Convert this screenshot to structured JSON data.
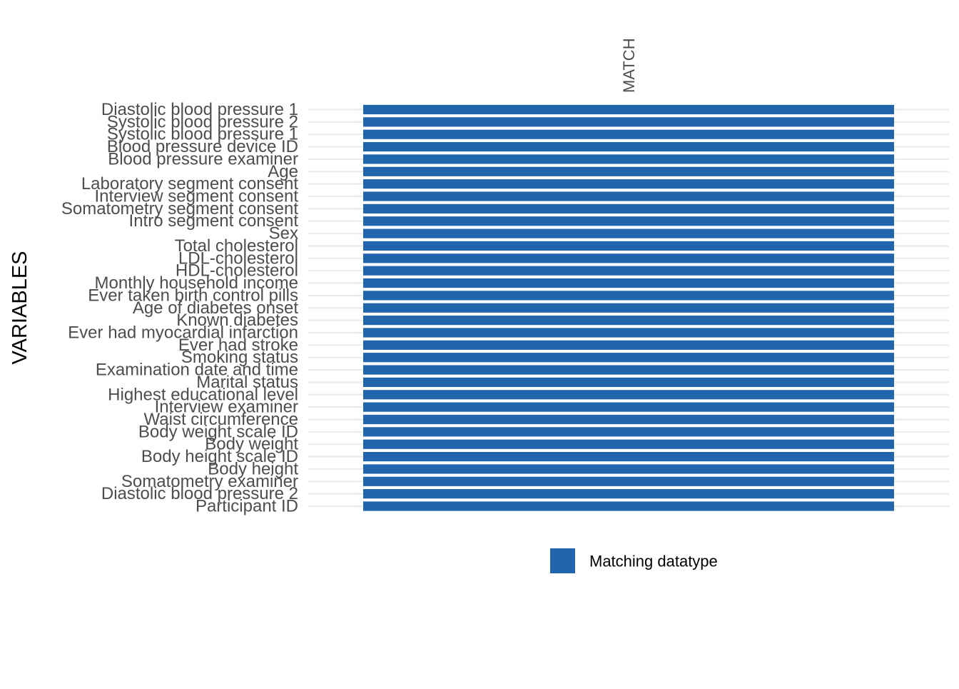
{
  "chart_data": {
    "type": "heatmap",
    "ylabel": "VARIABLES",
    "columns": [
      "MATCH"
    ],
    "variables": [
      "Diastolic blood pressure 1",
      "Systolic blood pressure 2",
      "Systolic blood pressure 1",
      "Blood pressure device ID",
      "Blood pressure examiner",
      "Age",
      "Laboratory segment consent",
      "Interview segment consent",
      "Somatometry segment consent",
      "Intro segment consent",
      "Sex",
      "Total cholesterol",
      "LDL-cholesterol",
      "HDL-cholesterol",
      "Monthly household income",
      "Ever taken birth control pills",
      "Age of diabetes onset",
      "Known diabetes",
      "Ever had myocardial infarction",
      "Ever had stroke",
      "Smoking status",
      "Examination date and time",
      "Marital status",
      "Highest educational level",
      "Interview examiner",
      "Waist circumference",
      "Body weight scale ID",
      "Body weight",
      "Body height scale ID",
      "Body height",
      "Somatometry examiner",
      "Diastolic blood pressure 2",
      "Participant ID"
    ],
    "values": [
      "Matching datatype",
      "Matching datatype",
      "Matching datatype",
      "Matching datatype",
      "Matching datatype",
      "Matching datatype",
      "Matching datatype",
      "Matching datatype",
      "Matching datatype",
      "Matching datatype",
      "Matching datatype",
      "Matching datatype",
      "Matching datatype",
      "Matching datatype",
      "Matching datatype",
      "Matching datatype",
      "Matching datatype",
      "Matching datatype",
      "Matching datatype",
      "Matching datatype",
      "Matching datatype",
      "Matching datatype",
      "Matching datatype",
      "Matching datatype",
      "Matching datatype",
      "Matching datatype",
      "Matching datatype",
      "Matching datatype",
      "Matching datatype",
      "Matching datatype",
      "Matching datatype",
      "Matching datatype",
      "Matching datatype"
    ],
    "legend": {
      "position": "bottom",
      "entries": [
        {
          "label": "Matching datatype",
          "color": "#2166ac"
        }
      ]
    },
    "colors": {
      "fill": "#2166ac",
      "grid": "#ebebeb",
      "tick_text": "#4d4d4d",
      "title_text": "#000000"
    },
    "grid": true
  }
}
